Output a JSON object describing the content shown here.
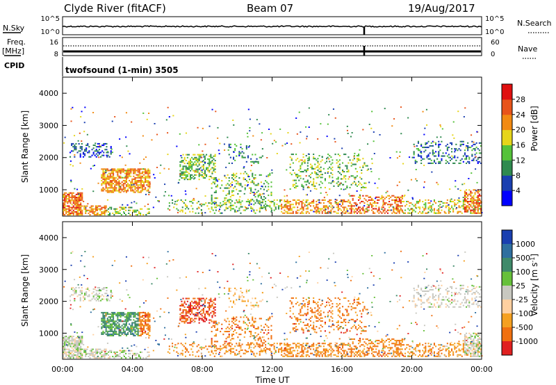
{
  "header": {
    "station": "Clyde River (fitACF)",
    "beam": "Beam 07",
    "date": "19/Aug/2017"
  },
  "small_panels": {
    "nsky_label": "N.Sky",
    "nsky_ticks": [
      "10^5",
      "10^0"
    ],
    "nsearch_label": "N.Search",
    "nsearch_ticks": [
      "10^5",
      "10^0"
    ],
    "freq_label_top": "Freq.",
    "freq_label_unit": "[MHz]",
    "freq_ticks": [
      "16",
      "8"
    ],
    "nave_label": "Nave",
    "nave_ticks": [
      "60",
      "0"
    ],
    "cpid_label": "CPID",
    "cpid_text": "twofsound (1-min) 3505"
  },
  "chart_data": [
    {
      "type": "heatmap",
      "name": "power",
      "ylabel": "Slant Range [km]",
      "yticks": [
        "1000",
        "2000",
        "3000",
        "4000"
      ],
      "ylim": [
        180,
        4500
      ],
      "colorbar_label": "Power [dB]",
      "colorbar_ticks": [
        "4",
        "8",
        "12",
        "16",
        "20",
        "24",
        "28"
      ],
      "colorbar_colors": [
        "#0000ff",
        "#1a3fb0",
        "#2f8a4f",
        "#55c23a",
        "#e6d51a",
        "#f28a12",
        "#e8541a",
        "#e01010"
      ]
    },
    {
      "type": "heatmap",
      "name": "velocity",
      "ylabel": "Slant Range [km]",
      "yticks": [
        "1000",
        "2000",
        "3000",
        "4000"
      ],
      "ylim": [
        180,
        4500
      ],
      "colorbar_label": "Velocity [m s^-1]",
      "colorbar_ticks": [
        "1000",
        "500",
        "100",
        "25",
        "-25",
        "-100",
        "-500",
        "-1000"
      ],
      "colorbar_colors": [
        "#1a3fb0",
        "#2f6f9f",
        "#3f8a6a",
        "#66c03a",
        "#c8c8c0",
        "#ffd0a0",
        "#f5a020",
        "#f07010",
        "#e02020"
      ]
    }
  ],
  "xaxis": {
    "label": "Time UT",
    "ticks": [
      "00:00",
      "04:00",
      "08:00",
      "12:00",
      "16:00",
      "20:00",
      "00:00"
    ]
  }
}
